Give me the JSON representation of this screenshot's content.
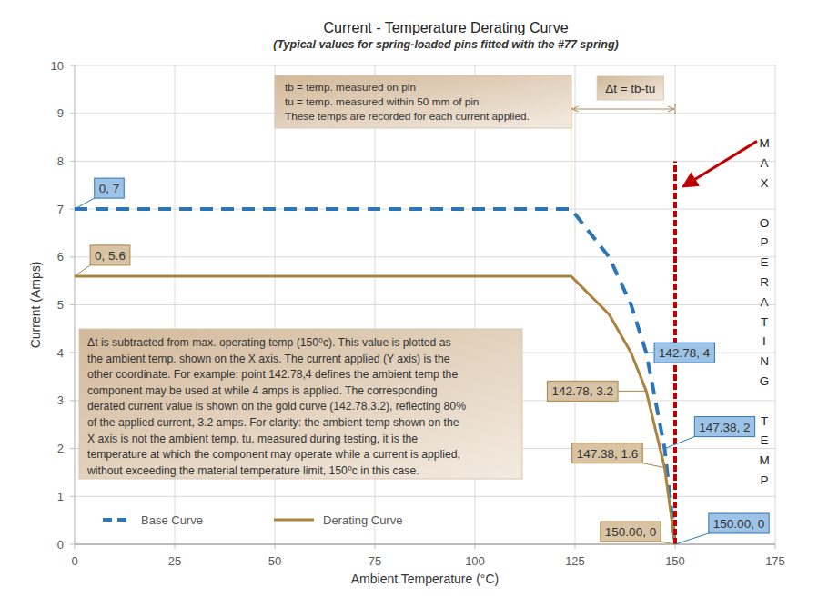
{
  "chart_data": {
    "type": "line",
    "title": "Current - Temperature Derating Curve",
    "subtitle": "(Typical values for spring-loaded pins fitted with the #77 spring)",
    "x_label": "Ambient Temperature (°C)",
    "y_label": "Current (Amps)",
    "x": [
      0,
      124,
      133.5,
      139,
      142.78,
      147.38,
      150
    ],
    "series": [
      {
        "name": "Base Curve",
        "color": "#2e75b6",
        "line_style": "dashed",
        "values": [
          7,
          7,
          6,
          5,
          4,
          2,
          0
        ],
        "value_labels": [
          "0, 7",
          null,
          null,
          null,
          "142.78, 4",
          "147.38, 2",
          "150.00, 0"
        ]
      },
      {
        "name": "Derating Curve",
        "color": "#a8843f",
        "line_style": "solid",
        "values": [
          5.6,
          5.6,
          4.8,
          4,
          3.2,
          1.6,
          0
        ],
        "value_labels": [
          "0, 5.6",
          null,
          null,
          null,
          "142.78, 3.2",
          "147.38, 1.6",
          "150.00, 0"
        ]
      }
    ],
    "xlim": [
      0,
      175
    ],
    "xticks": [
      0,
      25,
      50,
      75,
      100,
      125,
      150,
      175
    ],
    "ylim": [
      0,
      10
    ],
    "yticks": [
      0,
      1,
      2,
      3,
      4,
      5,
      6,
      7,
      8,
      9,
      10
    ],
    "grid": true,
    "legend": "lower left",
    "reference_line": {
      "x": 150,
      "y": [
        0,
        8
      ],
      "label": "MAX OPERATING TEMP",
      "color": "#c00000"
    },
    "definitions": [
      "tb = temp. measured on pin",
      "tu = temp. measured within 50 mm of pin",
      "These temps are recorded for each current applied."
    ],
    "delta_t": {
      "label": "Δt = tb-tu",
      "x": [
        124,
        150
      ]
    },
    "note": [
      "Δt is subtracted from max. operating temp (150⁰c). This value is plotted as",
      "the ambient temp. shown on the X axis. The current applied (Y axis) is the",
      "other coordinate. For example: point 142.78,4 defines the ambient temp the",
      "component may be used at while 4 amps is applied. The corresponding",
      "derated current value is shown on the gold curve (142.78,3.2), reflecting 80%",
      "of the applied current, 3.2 amps. For clarity: the ambient temp shown on the",
      "X axis is not the ambient temp, tu, measured during testing, it is the",
      "temperature at which the component may operate while a current is applied,",
      "without exceeding the material temperature limit, 150⁰c in this case."
    ]
  }
}
